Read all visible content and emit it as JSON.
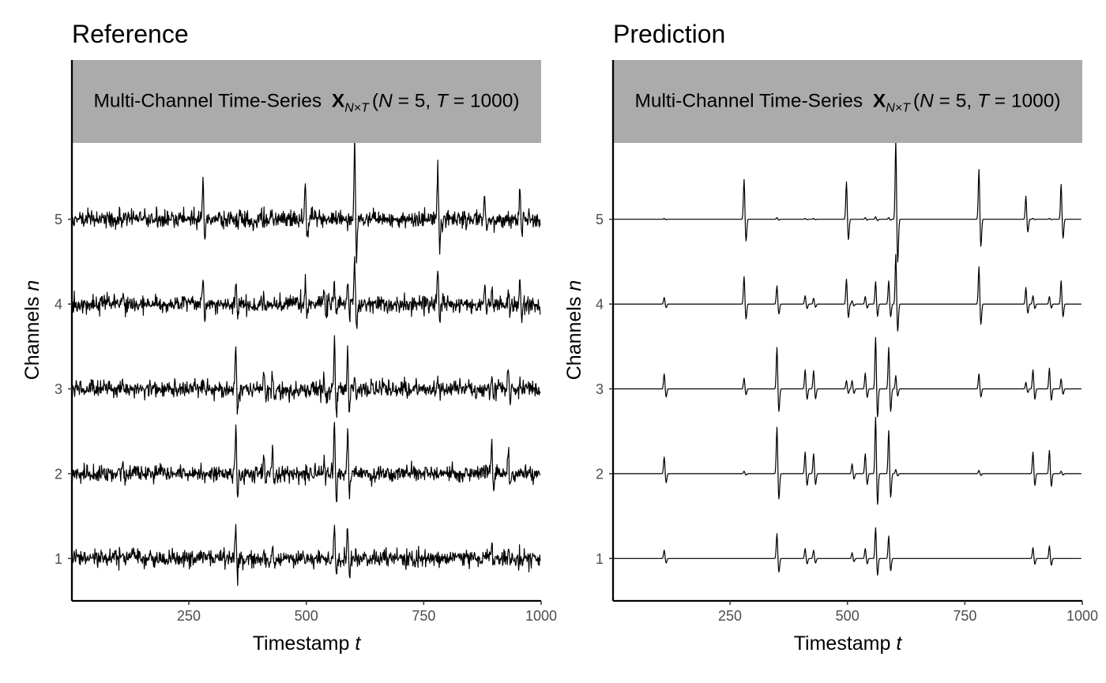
{
  "chart_data": [
    {
      "type": "line",
      "title": "Reference",
      "strip_label": "Multi-Channel Time-Series",
      "strip_symbol": "X",
      "strip_subscript": "N×T",
      "strip_params": {
        "N_name": "N",
        "N_value": "5",
        "T_name": "T",
        "T_value": "1000"
      },
      "xlabel": "Timestamp",
      "xlabel_var": "t",
      "ylabel": "Channels",
      "ylabel_var": "n",
      "xlim": [
        1,
        1000
      ],
      "ylim": [
        0.5,
        5.9
      ],
      "xticks": [
        250,
        500,
        750,
        1000
      ],
      "yticks": [
        1,
        2,
        3,
        4,
        5
      ],
      "grid": "horizontal at channels",
      "series": [
        {
          "channel": 1,
          "noise": 0.05,
          "spikes": [
            [
              110,
              0.04
            ],
            [
              350,
              0.3
            ],
            [
              410,
              0.1
            ],
            [
              428,
              0.12
            ],
            [
              560,
              0.35
            ],
            [
              588,
              0.38
            ],
            [
              895,
              0.1
            ],
            [
              930,
              0.1
            ]
          ]
        },
        {
          "channel": 2,
          "noise": 0.05,
          "spikes": [
            [
              110,
              0.16
            ],
            [
              350,
              0.6
            ],
            [
              410,
              0.22
            ],
            [
              428,
              0.25
            ],
            [
              510,
              0.1
            ],
            [
              538,
              0.16
            ],
            [
              560,
              0.65
            ],
            [
              588,
              0.55
            ],
            [
              895,
              0.3
            ],
            [
              930,
              0.28
            ]
          ]
        },
        {
          "channel": 3,
          "noise": 0.05,
          "spikes": [
            [
              110,
              0.12
            ],
            [
              280,
              0.08
            ],
            [
              350,
              0.55
            ],
            [
              410,
              0.2
            ],
            [
              428,
              0.18
            ],
            [
              538,
              0.15
            ],
            [
              560,
              0.6
            ],
            [
              588,
              0.48
            ],
            [
              603,
              0.15
            ],
            [
              780,
              0.1
            ],
            [
              895,
              0.2
            ],
            [
              930,
              0.3
            ],
            [
              955,
              0.12
            ]
          ]
        },
        {
          "channel": 4,
          "noise": 0.05,
          "spikes": [
            [
              110,
              0.06
            ],
            [
              280,
              0.35
            ],
            [
              350,
              0.28
            ],
            [
              410,
              0.1
            ],
            [
              498,
              0.3
            ],
            [
              538,
              0.18
            ],
            [
              560,
              0.25
            ],
            [
              588,
              0.25
            ],
            [
              603,
              0.55
            ],
            [
              780,
              0.45
            ],
            [
              880,
              0.22
            ],
            [
              895,
              0.15
            ],
            [
              930,
              0.12
            ],
            [
              955,
              0.3
            ]
          ]
        },
        {
          "channel": 5,
          "noise": 0.05,
          "spikes": [
            [
              280,
              0.48
            ],
            [
              498,
              0.45
            ],
            [
              603,
              0.95
            ],
            [
              780,
              0.6
            ],
            [
              880,
              0.28
            ],
            [
              955,
              0.38
            ]
          ]
        }
      ]
    },
    {
      "type": "line",
      "title": "Prediction",
      "strip_label": "Multi-Channel Time-Series",
      "strip_symbol": "X",
      "strip_subscript": "N×T",
      "strip_params": {
        "N_name": "N",
        "N_value": "5",
        "T_name": "T",
        "T_value": "1000"
      },
      "xlabel": "Timestamp",
      "xlabel_var": "t",
      "ylabel": "Channels",
      "ylabel_var": "n",
      "xlim": [
        1,
        1000
      ],
      "ylim": [
        0.5,
        5.9
      ],
      "xticks": [
        250,
        500,
        750,
        1000
      ],
      "yticks": [
        1,
        2,
        3,
        4,
        5
      ],
      "grid": "horizontal at channels",
      "series": [
        {
          "channel": 1,
          "noise": 0,
          "spikes": [
            [
              110,
              0.1
            ],
            [
              350,
              0.3
            ],
            [
              410,
              0.12
            ],
            [
              428,
              0.1
            ],
            [
              510,
              0.07
            ],
            [
              538,
              0.12
            ],
            [
              560,
              0.37
            ],
            [
              588,
              0.27
            ],
            [
              895,
              0.13
            ],
            [
              930,
              0.15
            ]
          ]
        },
        {
          "channel": 2,
          "noise": 0,
          "spikes": [
            [
              110,
              0.2
            ],
            [
              280,
              0.03
            ],
            [
              350,
              0.56
            ],
            [
              410,
              0.26
            ],
            [
              428,
              0.24
            ],
            [
              510,
              0.12
            ],
            [
              538,
              0.24
            ],
            [
              560,
              0.68
            ],
            [
              588,
              0.52
            ],
            [
              603,
              0.05
            ],
            [
              780,
              0.04
            ],
            [
              895,
              0.26
            ],
            [
              930,
              0.28
            ],
            [
              955,
              0.03
            ]
          ]
        },
        {
          "channel": 3,
          "noise": 0,
          "spikes": [
            [
              110,
              0.18
            ],
            [
              280,
              0.13
            ],
            [
              350,
              0.5
            ],
            [
              410,
              0.23
            ],
            [
              428,
              0.22
            ],
            [
              498,
              0.1
            ],
            [
              510,
              0.1
            ],
            [
              538,
              0.19
            ],
            [
              560,
              0.62
            ],
            [
              588,
              0.5
            ],
            [
              603,
              0.16
            ],
            [
              780,
              0.18
            ],
            [
              880,
              0.08
            ],
            [
              895,
              0.23
            ],
            [
              930,
              0.25
            ],
            [
              955,
              0.12
            ]
          ]
        },
        {
          "channel": 4,
          "noise": 0,
          "spikes": [
            [
              110,
              0.08
            ],
            [
              280,
              0.33
            ],
            [
              350,
              0.22
            ],
            [
              410,
              0.1
            ],
            [
              428,
              0.07
            ],
            [
              498,
              0.3
            ],
            [
              510,
              0.04
            ],
            [
              538,
              0.09
            ],
            [
              560,
              0.27
            ],
            [
              588,
              0.28
            ],
            [
              603,
              0.6
            ],
            [
              780,
              0.45
            ],
            [
              880,
              0.2
            ],
            [
              895,
              0.1
            ],
            [
              930,
              0.09
            ],
            [
              955,
              0.28
            ]
          ]
        },
        {
          "channel": 5,
          "noise": 0,
          "spikes": [
            [
              110,
              0.01
            ],
            [
              280,
              0.48
            ],
            [
              350,
              0.02
            ],
            [
              410,
              0.01
            ],
            [
              428,
              0.01
            ],
            [
              498,
              0.45
            ],
            [
              538,
              0.02
            ],
            [
              560,
              0.03
            ],
            [
              588,
              0.02
            ],
            [
              603,
              0.95
            ],
            [
              780,
              0.6
            ],
            [
              880,
              0.28
            ],
            [
              895,
              0.01
            ],
            [
              930,
              0.01
            ],
            [
              955,
              0.42
            ]
          ]
        }
      ]
    }
  ]
}
